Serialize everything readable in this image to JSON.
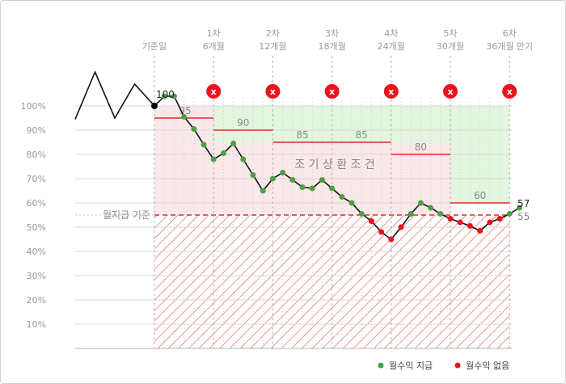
{
  "chart_data": {
    "type": "line",
    "title": "",
    "xlabel": "",
    "ylabel": "",
    "ylim": [
      0,
      110
    ],
    "y_ticks": [
      10,
      20,
      30,
      40,
      50,
      60,
      70,
      80,
      90,
      100
    ],
    "y_tick_suffix": "%",
    "grid": true,
    "observation_labels": [
      {
        "line1": "",
        "line2": "기준일"
      },
      {
        "line1": "1차",
        "line2": "6개월"
      },
      {
        "line1": "2차",
        "line2": "12개월"
      },
      {
        "line1": "3차",
        "line2": "18개월"
      },
      {
        "line1": "4차",
        "line2": "24개월"
      },
      {
        "line1": "5차",
        "line2": "30개월"
      },
      {
        "line1": "6차",
        "line2": "36개월 만기"
      }
    ],
    "early_redemption_barriers": [
      95,
      90,
      85,
      85,
      80,
      60
    ],
    "barrier_labels": [
      "95",
      "90",
      "85",
      "85",
      "80",
      "60"
    ],
    "early_redemption_text": "조 기 상 환 조 건",
    "coupon_barrier": 55,
    "coupon_barrier_label": "55",
    "coupon_barrier_name": "월지급 기준",
    "not_redeemed_marker": "x",
    "start_label": "100",
    "end_label": "57",
    "history_path": [
      94.5,
      114,
      95,
      109,
      100
    ],
    "series": [
      {
        "name": "월수익 지급",
        "color": "#4aa043",
        "points": [
          [
            1,
            104
          ],
          [
            2,
            104
          ],
          [
            3,
            95.5
          ],
          [
            4,
            90.5
          ],
          [
            5,
            84
          ],
          [
            6,
            78
          ],
          [
            7,
            80.5
          ],
          [
            8,
            84.5
          ],
          [
            9,
            78
          ],
          [
            10,
            71.5
          ],
          [
            11,
            65
          ],
          [
            12,
            70
          ],
          [
            13,
            72.5
          ],
          [
            14,
            69.5
          ],
          [
            15,
            66.5
          ],
          [
            16,
            66
          ],
          [
            17,
            69.5
          ],
          [
            18,
            66
          ],
          [
            19,
            62.5
          ],
          [
            20,
            60
          ],
          [
            21,
            55.5
          ],
          [
            26,
            55.5
          ],
          [
            27,
            60
          ],
          [
            28,
            58
          ],
          [
            29,
            55.5
          ],
          [
            36,
            55.5
          ],
          [
            37,
            58
          ]
        ]
      },
      {
        "name": "월수익 없음",
        "color": "#e8141c",
        "points": [
          [
            22,
            52.5
          ],
          [
            23,
            48
          ],
          [
            24,
            45
          ],
          [
            25,
            50
          ],
          [
            30,
            53.5
          ],
          [
            31,
            52
          ],
          [
            32,
            50.5
          ],
          [
            33,
            48.5
          ],
          [
            34,
            52
          ],
          [
            35,
            53.5
          ]
        ]
      }
    ],
    "colors": {
      "redemption_fill": "#fbe9e9",
      "final_fill": "#e3f6df",
      "barrier_line": "#dd2a2a",
      "hatch": "#e85050",
      "path": "#111111",
      "start_point": "#000000",
      "x_marker": "#e8141c",
      "grid": "#d8d8d8",
      "axis": "#b5b5b5"
    }
  }
}
